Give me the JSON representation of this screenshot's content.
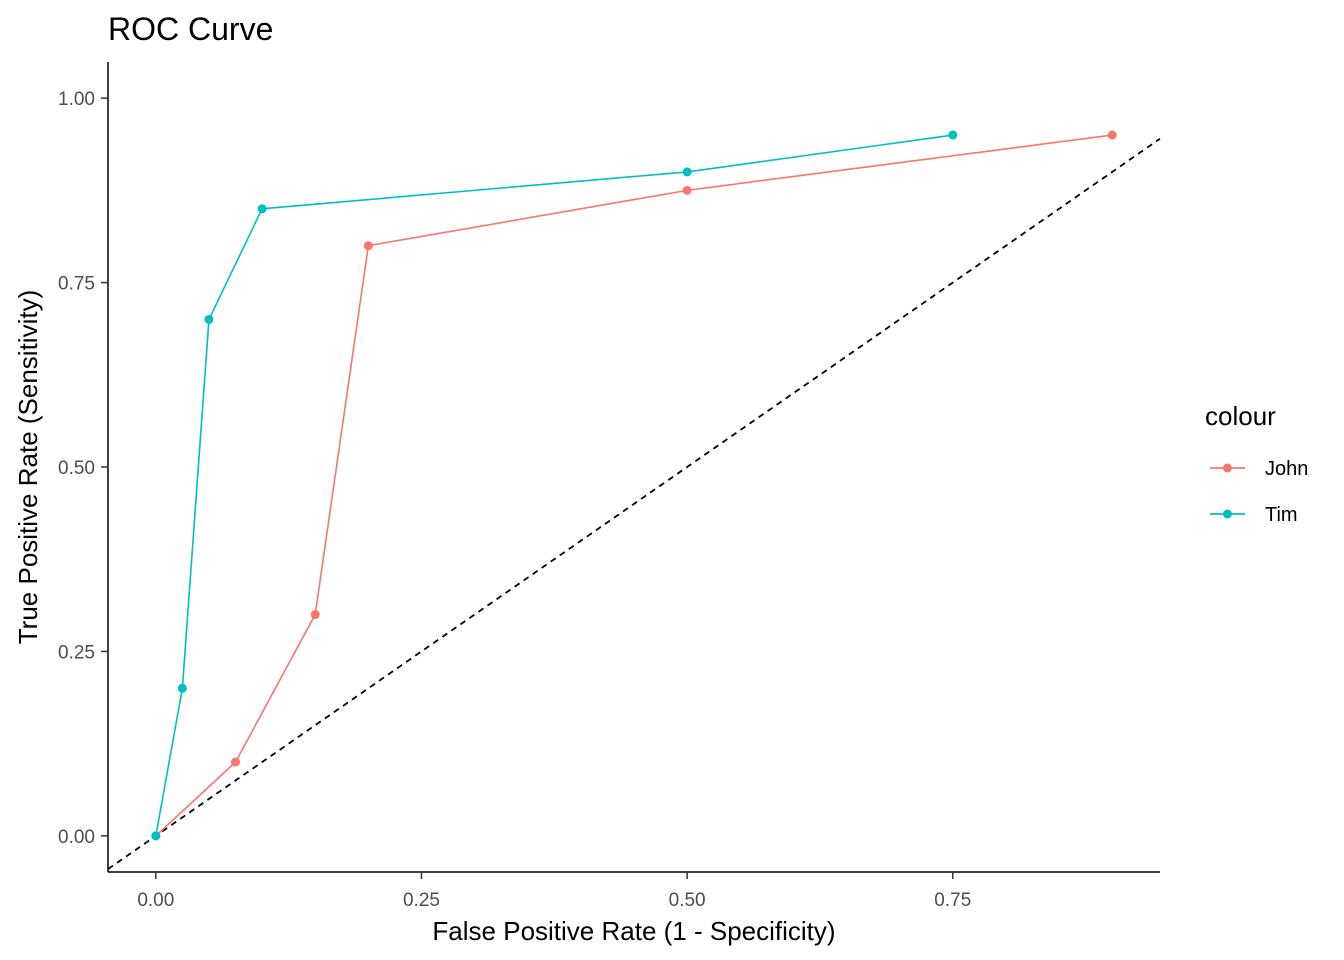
{
  "chart_data": {
    "type": "line",
    "title": "ROC Curve",
    "xlabel": "False Positive Rate (1 - Specificity)",
    "ylabel": "True Positive Rate (Sensitivity)",
    "xlim": [
      -0.045,
      0.945
    ],
    "ylim": [
      -0.049,
      1.049
    ],
    "xticks": [
      0,
      0.25,
      0.5,
      0.75
    ],
    "xtick_labels": [
      "0.00",
      "0.25",
      "0.50",
      "0.75"
    ],
    "yticks": [
      0,
      0.25,
      0.5,
      0.75,
      1.0
    ],
    "ytick_labels": [
      "0.00",
      "0.25",
      "0.50",
      "0.75",
      "1.00"
    ],
    "grid": false,
    "legend": {
      "title": "colour",
      "position": "right"
    },
    "reference_line": {
      "slope": 1,
      "intercept": 0,
      "style": "dashed",
      "color": "#000000"
    },
    "series": [
      {
        "name": "John",
        "color": "#F8766D",
        "x": [
          0,
          0.075,
          0.15,
          0.2,
          0.5,
          0.9
        ],
        "y": [
          0,
          0.1,
          0.3,
          0.8,
          0.875,
          0.95
        ]
      },
      {
        "name": "Tim",
        "color": "#00BFC4",
        "x": [
          0,
          0.025,
          0.05,
          0.1,
          0.5,
          0.75
        ],
        "y": [
          0,
          0.2,
          0.7,
          0.85,
          0.9,
          0.95
        ]
      }
    ]
  }
}
